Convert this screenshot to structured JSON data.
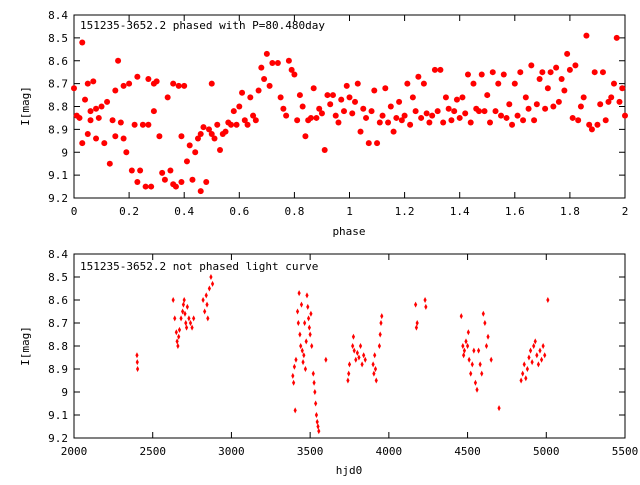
{
  "chart_data": [
    {
      "type": "scatter",
      "title": "151235-3652.2 phased with P=80.480day",
      "xlabel": "phase",
      "ylabel": "I[mag]",
      "xlim": [
        0,
        2
      ],
      "ylim": [
        9.2,
        8.4
      ],
      "y_inverted": true,
      "x_ticks": [
        "0",
        "0.2",
        "0.4",
        "0.6",
        "0.8",
        "1",
        "1.2",
        "1.4",
        "1.6",
        "1.8",
        "2"
      ],
      "y_ticks": [
        "8.4",
        "8.5",
        "8.6",
        "8.7",
        "8.8",
        "8.9",
        "9",
        "9.1",
        "9.2"
      ],
      "marker": "filled-circle",
      "color": "#ff0000",
      "points": [
        [
          0.0,
          8.72
        ],
        [
          0.01,
          8.84
        ],
        [
          0.02,
          8.85
        ],
        [
          0.03,
          8.52
        ],
        [
          0.03,
          8.96
        ],
        [
          0.04,
          8.77
        ],
        [
          0.05,
          8.92
        ],
        [
          0.05,
          8.7
        ],
        [
          0.06,
          8.86
        ],
        [
          0.06,
          8.82
        ],
        [
          0.07,
          8.69
        ],
        [
          0.08,
          8.94
        ],
        [
          0.08,
          8.81
        ],
        [
          0.09,
          8.85
        ],
        [
          0.1,
          8.8
        ],
        [
          0.11,
          8.96
        ],
        [
          0.12,
          8.78
        ],
        [
          0.13,
          9.05
        ],
        [
          0.14,
          8.86
        ],
        [
          0.15,
          8.93
        ],
        [
          0.15,
          8.73
        ],
        [
          0.16,
          8.6
        ],
        [
          0.17,
          8.87
        ],
        [
          0.18,
          8.94
        ],
        [
          0.18,
          8.71
        ],
        [
          0.19,
          9.0
        ],
        [
          0.2,
          8.7
        ],
        [
          0.21,
          9.08
        ],
        [
          0.22,
          8.88
        ],
        [
          0.23,
          8.67
        ],
        [
          0.23,
          9.13
        ],
        [
          0.24,
          9.08
        ],
        [
          0.25,
          8.88
        ],
        [
          0.26,
          9.15
        ],
        [
          0.27,
          8.88
        ],
        [
          0.27,
          8.68
        ],
        [
          0.28,
          9.15
        ],
        [
          0.29,
          8.82
        ],
        [
          0.29,
          8.7
        ],
        [
          0.3,
          8.69
        ],
        [
          0.31,
          8.93
        ],
        [
          0.32,
          9.09
        ],
        [
          0.33,
          9.12
        ],
        [
          0.34,
          8.76
        ],
        [
          0.35,
          9.08
        ],
        [
          0.36,
          8.7
        ],
        [
          0.36,
          9.14
        ],
        [
          0.37,
          9.15
        ],
        [
          0.38,
          8.71
        ],
        [
          0.39,
          9.13
        ],
        [
          0.39,
          8.93
        ],
        [
          0.4,
          8.71
        ],
        [
          0.41,
          9.04
        ],
        [
          0.42,
          8.97
        ],
        [
          0.43,
          9.12
        ],
        [
          0.44,
          9.0
        ],
        [
          0.45,
          8.94
        ],
        [
          0.46,
          9.17
        ],
        [
          0.46,
          8.92
        ],
        [
          0.47,
          8.89
        ],
        [
          0.48,
          9.13
        ],
        [
          0.49,
          8.9
        ],
        [
          0.5,
          8.92
        ],
        [
          0.5,
          8.7
        ],
        [
          0.51,
          8.94
        ],
        [
          0.52,
          8.88
        ],
        [
          0.53,
          8.99
        ],
        [
          0.54,
          8.92
        ],
        [
          0.55,
          8.91
        ],
        [
          0.56,
          8.87
        ],
        [
          0.57,
          8.88
        ],
        [
          0.58,
          8.82
        ],
        [
          0.59,
          8.88
        ],
        [
          0.6,
          8.8
        ],
        [
          0.61,
          8.74
        ],
        [
          0.62,
          8.86
        ],
        [
          0.63,
          8.88
        ],
        [
          0.64,
          8.76
        ],
        [
          0.65,
          8.84
        ],
        [
          0.66,
          8.86
        ],
        [
          0.67,
          8.73
        ],
        [
          0.68,
          8.63
        ],
        [
          0.69,
          8.68
        ],
        [
          0.7,
          8.57
        ],
        [
          0.71,
          8.71
        ],
        [
          0.72,
          8.61
        ],
        [
          0.74,
          8.61
        ],
        [
          0.75,
          8.76
        ],
        [
          0.76,
          8.81
        ],
        [
          0.77,
          8.84
        ],
        [
          0.78,
          8.6
        ],
        [
          0.79,
          8.64
        ],
        [
          0.8,
          8.66
        ],
        [
          0.81,
          8.86
        ],
        [
          0.82,
          8.75
        ],
        [
          0.83,
          8.8
        ],
        [
          0.84,
          8.93
        ],
        [
          0.85,
          8.86
        ],
        [
          0.86,
          8.85
        ],
        [
          0.87,
          8.72
        ],
        [
          0.88,
          8.85
        ],
        [
          0.89,
          8.81
        ],
        [
          0.9,
          8.83
        ],
        [
          0.91,
          8.99
        ],
        [
          0.92,
          8.75
        ],
        [
          0.93,
          8.79
        ],
        [
          0.94,
          8.75
        ],
        [
          0.95,
          8.84
        ],
        [
          0.96,
          8.87
        ],
        [
          0.97,
          8.77
        ],
        [
          0.98,
          8.82
        ],
        [
          0.99,
          8.71
        ],
        [
          1.0,
          8.76
        ],
        [
          1.01,
          8.83
        ],
        [
          1.02,
          8.78
        ],
        [
          1.03,
          8.7
        ],
        [
          1.04,
          8.91
        ],
        [
          1.05,
          8.81
        ],
        [
          1.06,
          8.85
        ],
        [
          1.07,
          8.96
        ],
        [
          1.08,
          8.82
        ],
        [
          1.09,
          8.73
        ],
        [
          1.1,
          8.96
        ],
        [
          1.11,
          8.87
        ],
        [
          1.12,
          8.84
        ],
        [
          1.13,
          8.72
        ],
        [
          1.14,
          8.87
        ],
        [
          1.15,
          8.8
        ],
        [
          1.16,
          8.91
        ],
        [
          1.17,
          8.85
        ],
        [
          1.18,
          8.78
        ],
        [
          1.19,
          8.86
        ],
        [
          1.2,
          8.84
        ],
        [
          1.21,
          8.7
        ],
        [
          1.22,
          8.88
        ],
        [
          1.23,
          8.76
        ],
        [
          1.24,
          8.82
        ],
        [
          1.25,
          8.67
        ],
        [
          1.26,
          8.85
        ],
        [
          1.27,
          8.7
        ],
        [
          1.28,
          8.83
        ],
        [
          1.29,
          8.87
        ],
        [
          1.3,
          8.84
        ],
        [
          1.31,
          8.64
        ],
        [
          1.32,
          8.82
        ],
        [
          1.33,
          8.64
        ],
        [
          1.34,
          8.87
        ],
        [
          1.35,
          8.76
        ],
        [
          1.36,
          8.81
        ],
        [
          1.37,
          8.86
        ],
        [
          1.38,
          8.82
        ],
        [
          1.39,
          8.77
        ],
        [
          1.4,
          8.85
        ],
        [
          1.41,
          8.76
        ],
        [
          1.42,
          8.83
        ],
        [
          1.43,
          8.66
        ],
        [
          1.44,
          8.87
        ],
        [
          1.45,
          8.7
        ],
        [
          1.46,
          8.81
        ],
        [
          1.47,
          8.82
        ],
        [
          1.48,
          8.66
        ],
        [
          1.49,
          8.82
        ],
        [
          1.5,
          8.75
        ],
        [
          1.51,
          8.87
        ],
        [
          1.52,
          8.65
        ],
        [
          1.53,
          8.82
        ],
        [
          1.54,
          8.7
        ],
        [
          1.55,
          8.84
        ],
        [
          1.56,
          8.66
        ],
        [
          1.57,
          8.85
        ],
        [
          1.58,
          8.79
        ],
        [
          1.59,
          8.88
        ],
        [
          1.6,
          8.7
        ],
        [
          1.61,
          8.84
        ],
        [
          1.62,
          8.65
        ],
        [
          1.63,
          8.86
        ],
        [
          1.64,
          8.76
        ],
        [
          1.65,
          8.81
        ],
        [
          1.66,
          8.62
        ],
        [
          1.67,
          8.86
        ],
        [
          1.68,
          8.79
        ],
        [
          1.69,
          8.68
        ],
        [
          1.7,
          8.65
        ],
        [
          1.71,
          8.81
        ],
        [
          1.72,
          8.72
        ],
        [
          1.73,
          8.65
        ],
        [
          1.74,
          8.8
        ],
        [
          1.75,
          8.63
        ],
        [
          1.76,
          8.78
        ],
        [
          1.77,
          8.68
        ],
        [
          1.78,
          8.73
        ],
        [
          1.79,
          8.57
        ],
        [
          1.8,
          8.64
        ],
        [
          1.81,
          8.85
        ],
        [
          1.82,
          8.62
        ],
        [
          1.83,
          8.86
        ],
        [
          1.84,
          8.8
        ],
        [
          1.85,
          8.76
        ],
        [
          1.86,
          8.49
        ],
        [
          1.87,
          8.88
        ],
        [
          1.88,
          8.9
        ],
        [
          1.89,
          8.65
        ],
        [
          1.9,
          8.88
        ],
        [
          1.91,
          8.79
        ],
        [
          1.92,
          8.65
        ],
        [
          1.93,
          8.86
        ],
        [
          1.94,
          8.78
        ],
        [
          1.95,
          8.76
        ],
        [
          1.96,
          8.7
        ],
        [
          1.97,
          8.5
        ],
        [
          1.98,
          8.78
        ],
        [
          1.99,
          8.72
        ],
        [
          2.0,
          8.84
        ]
      ]
    },
    {
      "type": "scatter",
      "title": "151235-3652.2 not phased light curve",
      "xlabel": "hjd0",
      "ylabel": "I[mag]",
      "xlim": [
        2000,
        5500
      ],
      "ylim": [
        9.2,
        8.4
      ],
      "y_inverted": true,
      "x_ticks": [
        "2000",
        "2500",
        "3000",
        "3500",
        "4000",
        "4500",
        "5000",
        "5500"
      ],
      "y_ticks": [
        "8.4",
        "8.5",
        "8.6",
        "8.7",
        "8.8",
        "8.9",
        "9",
        "9.1",
        "9.2"
      ],
      "marker": "small-diamond",
      "color": "#ff0000",
      "points": [
        [
          2400,
          8.84
        ],
        [
          2402,
          8.87
        ],
        [
          2404,
          8.9
        ],
        [
          2630,
          8.6
        ],
        [
          2640,
          8.68
        ],
        [
          2650,
          8.74
        ],
        [
          2655,
          8.78
        ],
        [
          2660,
          8.8
        ],
        [
          2665,
          8.76
        ],
        [
          2670,
          8.73
        ],
        [
          2680,
          8.68
        ],
        [
          2690,
          8.65
        ],
        [
          2695,
          8.62
        ],
        [
          2700,
          8.6
        ],
        [
          2705,
          8.66
        ],
        [
          2710,
          8.7
        ],
        [
          2715,
          8.72
        ],
        [
          2720,
          8.63
        ],
        [
          2730,
          8.68
        ],
        [
          2740,
          8.7
        ],
        [
          2750,
          8.72
        ],
        [
          2760,
          8.68
        ],
        [
          2820,
          8.6
        ],
        [
          2830,
          8.65
        ],
        [
          2840,
          8.58
        ],
        [
          2845,
          8.62
        ],
        [
          2850,
          8.68
        ],
        [
          2860,
          8.55
        ],
        [
          2870,
          8.5
        ],
        [
          2880,
          8.53
        ],
        [
          3390,
          8.93
        ],
        [
          3395,
          8.96
        ],
        [
          3400,
          8.89
        ],
        [
          3405,
          9.08
        ],
        [
          3410,
          8.86
        ],
        [
          3420,
          8.65
        ],
        [
          3425,
          8.7
        ],
        [
          3430,
          8.57
        ],
        [
          3435,
          8.75
        ],
        [
          3440,
          8.8
        ],
        [
          3445,
          8.62
        ],
        [
          3450,
          8.82
        ],
        [
          3455,
          8.87
        ],
        [
          3460,
          8.84
        ],
        [
          3465,
          8.7
        ],
        [
          3470,
          8.9
        ],
        [
          3475,
          8.78
        ],
        [
          3480,
          8.58
        ],
        [
          3485,
          8.63
        ],
        [
          3490,
          8.68
        ],
        [
          3495,
          8.72
        ],
        [
          3500,
          8.75
        ],
        [
          3505,
          8.66
        ],
        [
          3510,
          8.8
        ],
        [
          3520,
          8.92
        ],
        [
          3525,
          8.96
        ],
        [
          3530,
          9.0
        ],
        [
          3535,
          9.05
        ],
        [
          3540,
          9.1
        ],
        [
          3545,
          9.13
        ],
        [
          3550,
          9.15
        ],
        [
          3555,
          9.17
        ],
        [
          3600,
          8.86
        ],
        [
          3740,
          8.95
        ],
        [
          3745,
          8.92
        ],
        [
          3750,
          8.88
        ],
        [
          3770,
          8.8
        ],
        [
          3775,
          8.76
        ],
        [
          3780,
          8.82
        ],
        [
          3790,
          8.86
        ],
        [
          3800,
          8.83
        ],
        [
          3810,
          8.85
        ],
        [
          3820,
          8.8
        ],
        [
          3830,
          8.88
        ],
        [
          3840,
          8.84
        ],
        [
          3850,
          8.86
        ],
        [
          3900,
          8.88
        ],
        [
          3905,
          8.92
        ],
        [
          3910,
          8.84
        ],
        [
          3915,
          8.9
        ],
        [
          3920,
          8.95
        ],
        [
          3940,
          8.8
        ],
        [
          3945,
          8.75
        ],
        [
          3950,
          8.7
        ],
        [
          3955,
          8.67
        ],
        [
          4170,
          8.62
        ],
        [
          4175,
          8.72
        ],
        [
          4180,
          8.7
        ],
        [
          4230,
          8.6
        ],
        [
          4235,
          8.63
        ],
        [
          4460,
          8.67
        ],
        [
          4470,
          8.8
        ],
        [
          4475,
          8.84
        ],
        [
          4480,
          8.82
        ],
        [
          4490,
          8.78
        ],
        [
          4500,
          8.8
        ],
        [
          4505,
          8.74
        ],
        [
          4510,
          8.86
        ],
        [
          4520,
          8.92
        ],
        [
          4530,
          8.88
        ],
        [
          4540,
          8.82
        ],
        [
          4550,
          8.96
        ],
        [
          4560,
          8.99
        ],
        [
          4570,
          8.82
        ],
        [
          4580,
          8.88
        ],
        [
          4590,
          8.92
        ],
        [
          4600,
          8.66
        ],
        [
          4610,
          8.7
        ],
        [
          4620,
          8.8
        ],
        [
          4630,
          8.76
        ],
        [
          4650,
          8.86
        ],
        [
          4700,
          9.07
        ],
        [
          4840,
          8.95
        ],
        [
          4850,
          8.92
        ],
        [
          4860,
          8.88
        ],
        [
          4870,
          8.94
        ],
        [
          4880,
          8.9
        ],
        [
          4890,
          8.85
        ],
        [
          4900,
          8.82
        ],
        [
          4910,
          8.87
        ],
        [
          4920,
          8.8
        ],
        [
          4930,
          8.78
        ],
        [
          4940,
          8.84
        ],
        [
          4950,
          8.88
        ],
        [
          4960,
          8.82
        ],
        [
          4970,
          8.86
        ],
        [
          4980,
          8.8
        ],
        [
          4990,
          8.84
        ],
        [
          5010,
          8.6
        ]
      ]
    }
  ]
}
